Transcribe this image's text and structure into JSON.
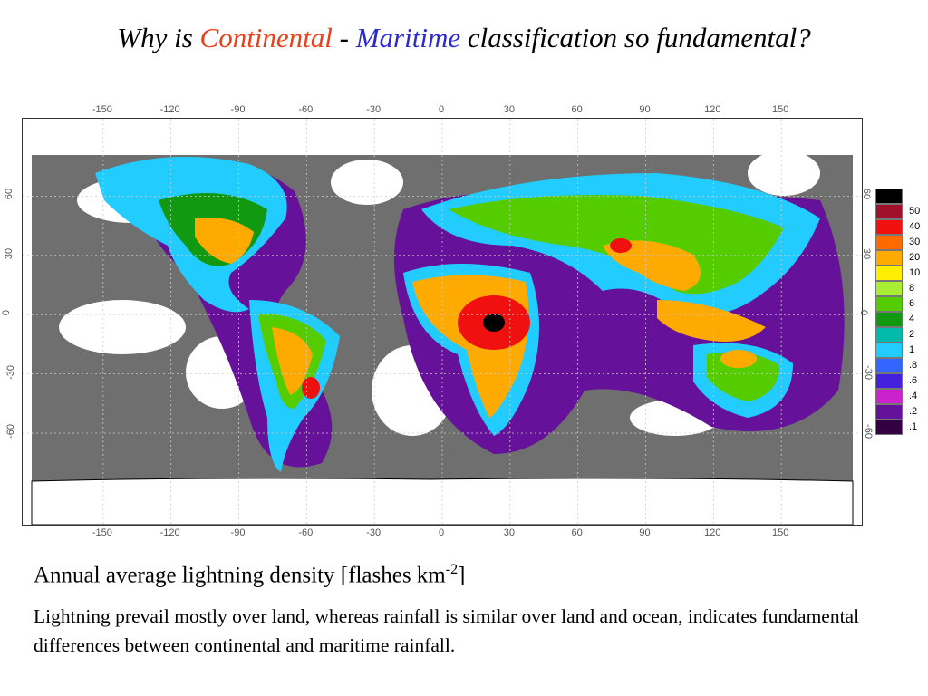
{
  "title": {
    "part1": "Why is ",
    "continental": "Continental",
    "sep": " - ",
    "maritime": "Maritime",
    "part2": " classification so fundamental?",
    "continental_color": "#e8401a",
    "maritime_color": "#2a2ad0"
  },
  "map": {
    "lon_ticks": [
      "-150",
      "-120",
      "-90",
      "-60",
      "-30",
      "0",
      "30",
      "60",
      "90",
      "120",
      "150"
    ],
    "lat_ticks": [
      "60",
      "30",
      "0",
      "-30",
      "-60"
    ],
    "colors": {
      "ocean_none": "#ffffff",
      "ocean_low": "#6f6f6f"
    }
  },
  "legend": {
    "levels": [
      {
        "label": "",
        "color": "#000000"
      },
      {
        "label": "50",
        "color": "#a0102a"
      },
      {
        "label": "40",
        "color": "#f01010"
      },
      {
        "label": "30",
        "color": "#ff6a00"
      },
      {
        "label": "20",
        "color": "#ffaa00"
      },
      {
        "label": "10",
        "color": "#ffee00"
      },
      {
        "label": "8",
        "color": "#aaee33"
      },
      {
        "label": "6",
        "color": "#55cc00"
      },
      {
        "label": "4",
        "color": "#119911"
      },
      {
        "label": "2",
        "color": "#00bbaa"
      },
      {
        "label": "1",
        "color": "#22ccff"
      },
      {
        "label": ".8",
        "color": "#3366ff"
      },
      {
        "label": ".6",
        "color": "#4422dd"
      },
      {
        "label": ".4",
        "color": "#cc22cc"
      },
      {
        "label": ".2",
        "color": "#661199"
      },
      {
        "label": ".1",
        "color": "#330044"
      }
    ]
  },
  "caption": {
    "title_main": "Annual average lightning density [flashes km",
    "title_sup": "-2",
    "title_end": "]",
    "body": "Lightning prevail mostly over land, whereas rainfall is similar over land and ocean, indicates fundamental differences between continental and maritime rainfall."
  }
}
